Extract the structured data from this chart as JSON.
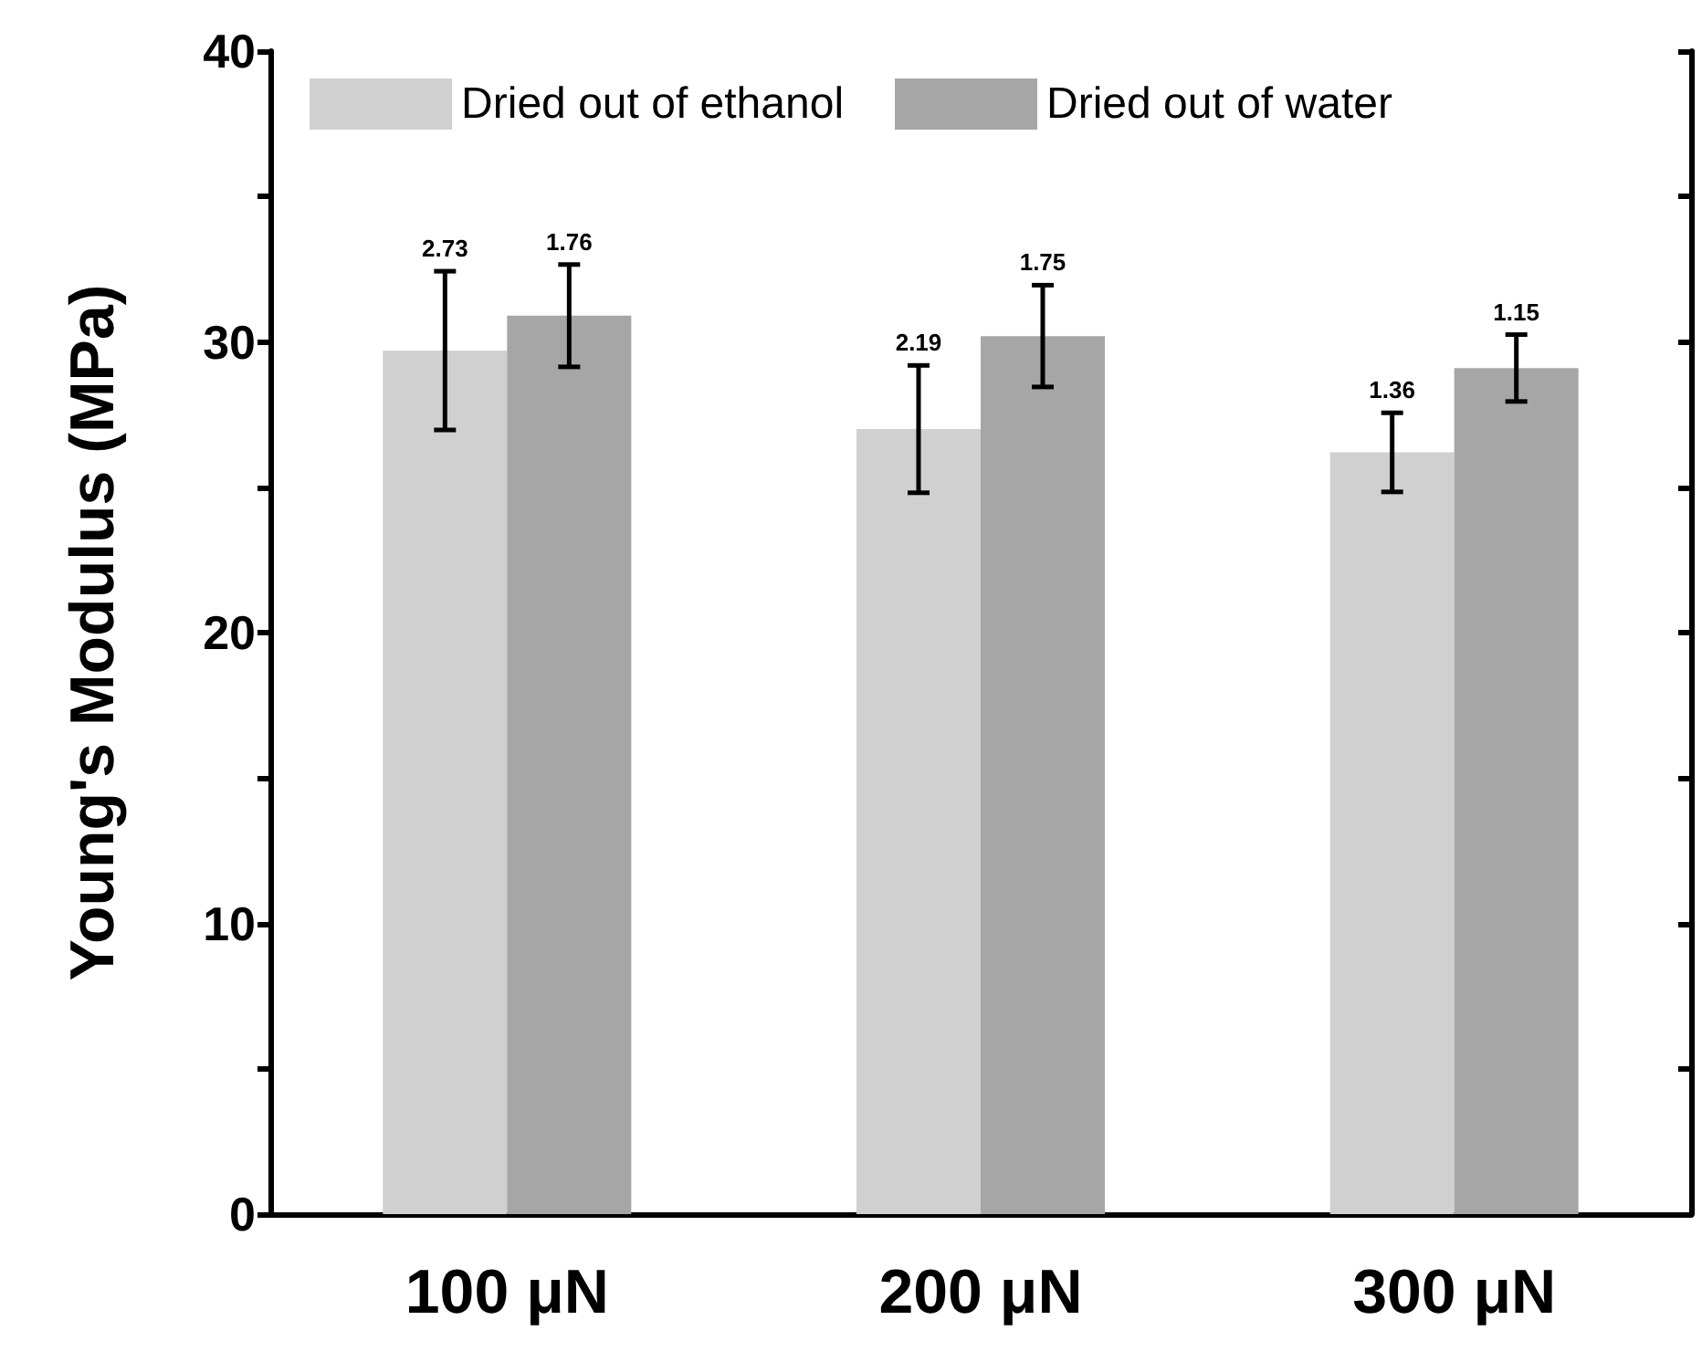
{
  "chart_data": {
    "type": "bar",
    "ylabel": "Young's Modulus (MPa)",
    "categories": [
      "100 μN",
      "200 μN",
      "300 μN"
    ],
    "series": [
      {
        "name": "Dried out of ethanol",
        "color": "#d0d0d0",
        "values": [
          29.7,
          27.0,
          26.2
        ],
        "errors": [
          2.73,
          2.19,
          1.36
        ]
      },
      {
        "name": "Dried out of water",
        "color": "#a6a6a6",
        "values": [
          30.9,
          30.2,
          29.1
        ],
        "errors": [
          1.76,
          1.75,
          1.15
        ]
      }
    ],
    "annotations": [
      "2.73",
      "1.76",
      "2.19",
      "1.75",
      "1.36",
      "1.15"
    ],
    "ylim": [
      0,
      40
    ],
    "yticks": [
      0,
      {
        "value": 5,
        "label": null
      },
      10,
      {
        "value": 15,
        "label": null
      },
      20,
      {
        "value": 25,
        "label": null
      },
      30,
      {
        "value": 35,
        "label": null
      },
      40
    ],
    "grid": false,
    "legend": "top"
  }
}
